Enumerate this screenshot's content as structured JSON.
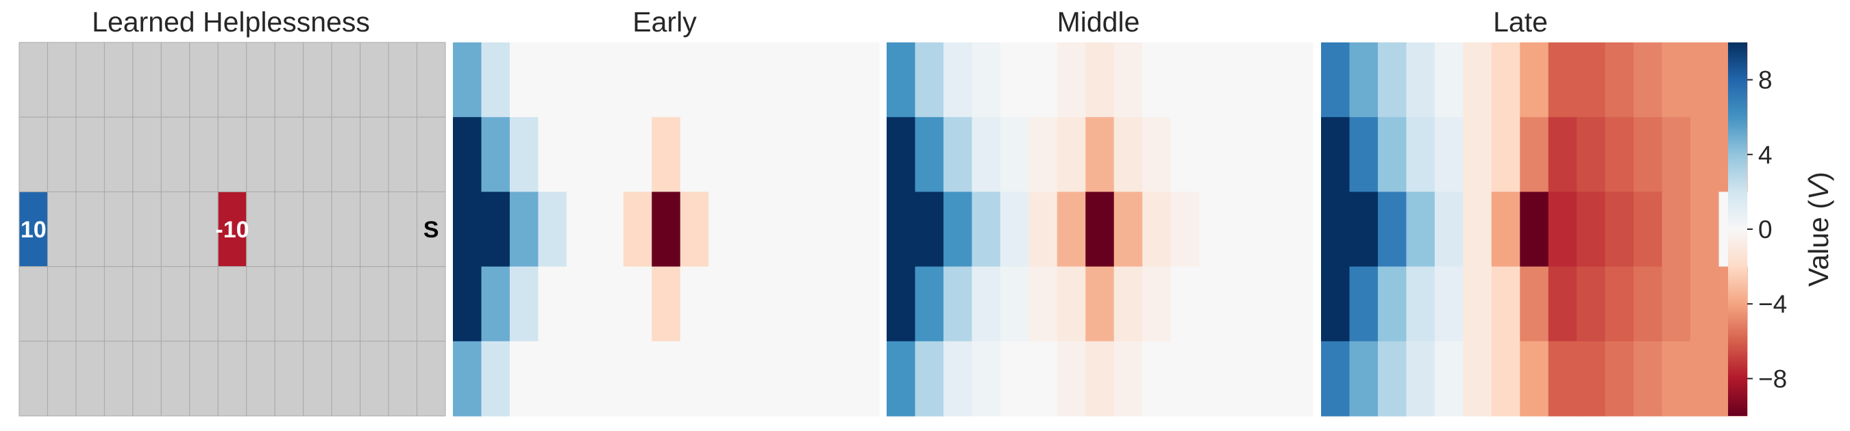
{
  "chart_data": [
    {
      "type": "heatmap",
      "title": "Learned Helplessness",
      "grid": "on",
      "base_color": "#cccccc",
      "n_rows": 5,
      "n_cols": 15,
      "special_cells": [
        {
          "row": 2,
          "col": 0,
          "label": "10",
          "color": "#2166ac",
          "text_color": "#ffffff"
        },
        {
          "row": 2,
          "col": 7,
          "label": "-10",
          "color": "#b2182b",
          "text_color": "#ffffff"
        },
        {
          "row": 2,
          "col": 14,
          "label": "S",
          "color": "#cccccc",
          "text_color": "#000000"
        }
      ]
    },
    {
      "type": "heatmap",
      "title": "Early",
      "values": [
        [
          5,
          2,
          0,
          0,
          0,
          0,
          0,
          0,
          0,
          0,
          0,
          0,
          0,
          0,
          0
        ],
        [
          10,
          5,
          2,
          0,
          0,
          0,
          0,
          -2,
          0,
          0,
          0,
          0,
          0,
          0,
          0
        ],
        [
          10,
          10,
          5,
          2,
          0,
          0,
          -2,
          -10,
          -2,
          0,
          0,
          0,
          0,
          0,
          0
        ],
        [
          10,
          5,
          2,
          0,
          0,
          0,
          0,
          -2,
          0,
          0,
          0,
          0,
          0,
          0,
          0
        ],
        [
          5,
          2,
          0,
          0,
          0,
          0,
          0,
          0,
          0,
          0,
          0,
          0,
          0,
          0,
          0
        ]
      ]
    },
    {
      "type": "heatmap",
      "title": "Middle",
      "values": [
        [
          6,
          3,
          1,
          0.5,
          0,
          0,
          -0.5,
          -1,
          -0.5,
          0,
          0,
          0,
          0,
          0,
          0
        ],
        [
          10,
          6,
          3,
          1,
          0.5,
          -0.5,
          -1,
          -3.5,
          -1,
          -0.5,
          0,
          0,
          0,
          0,
          0
        ],
        [
          10,
          10,
          6,
          3,
          1,
          -1,
          -3.5,
          -10,
          -3.5,
          -1,
          -0.5,
          0,
          0,
          0,
          0
        ],
        [
          10,
          6,
          3,
          1,
          0.5,
          -0.5,
          -1,
          -3.5,
          -1,
          -0.5,
          0,
          0,
          0,
          0,
          0
        ],
        [
          6,
          3,
          1,
          0.5,
          0,
          0,
          -0.5,
          -1,
          -0.5,
          0,
          0,
          0,
          0,
          0,
          0
        ]
      ]
    },
    {
      "type": "heatmap",
      "title": "Late",
      "values": [
        [
          7,
          5,
          3,
          1.5,
          0.5,
          -1,
          -2,
          -4,
          -6,
          -6,
          -5.5,
          -5,
          -4.5,
          -4.5,
          -4.5
        ],
        [
          10,
          7,
          4,
          2,
          1,
          -1,
          -2,
          -5,
          -7,
          -6.5,
          -6,
          -5.5,
          -5,
          -4.5,
          -4.5
        ],
        [
          10,
          10,
          7,
          4,
          1.5,
          -1,
          -4,
          -10,
          -7.5,
          -7,
          -6.5,
          -6,
          -5,
          -4.5,
          0
        ],
        [
          10,
          7,
          4,
          2,
          1,
          -1,
          -2,
          -5,
          -7,
          -6.5,
          -6,
          -5.5,
          -5,
          -4.5,
          -4.5
        ],
        [
          7,
          5,
          3,
          1.5,
          0.5,
          -1,
          -2,
          -4,
          -6,
          -6,
          -5.5,
          -5,
          -4.5,
          -4.5,
          -4.5
        ]
      ]
    }
  ],
  "colorbar": {
    "label_text": "Value (",
    "label_var": "V",
    "label_close": ")",
    "vmin": -10,
    "vmax": 10,
    "ticks": [
      8,
      4,
      0,
      -4,
      -8
    ],
    "tick_labels": [
      "8",
      "4",
      "0",
      "−4",
      "−8"
    ],
    "colormap": "RdBu",
    "colors": [
      "#67001f",
      "#b2182b",
      "#d6604d",
      "#f4a582",
      "#fddbc7",
      "#f7f7f7",
      "#d1e5f0",
      "#92c5de",
      "#4393c3",
      "#2166ac",
      "#053061"
    ]
  }
}
